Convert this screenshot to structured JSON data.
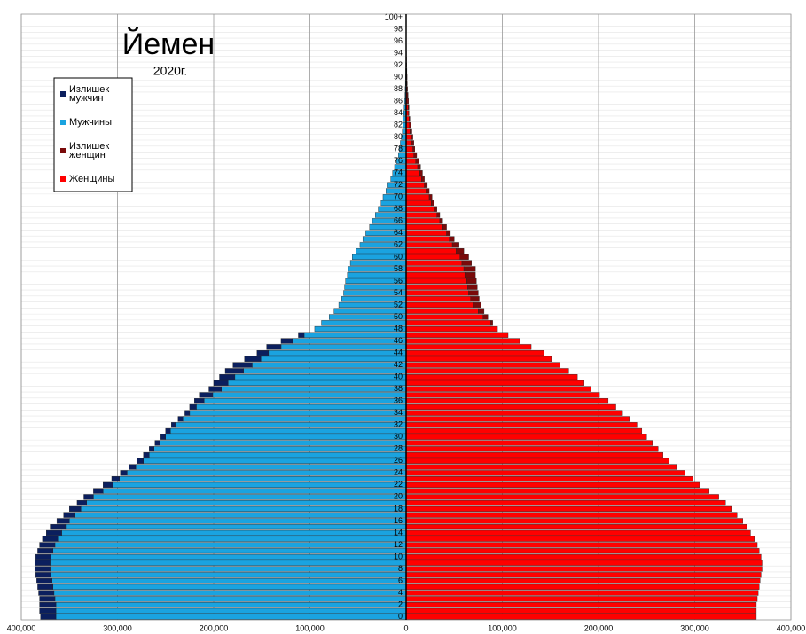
{
  "chart_data": {
    "type": "pyramid",
    "title": "Йемен",
    "subtitle": "2020г.",
    "categories": [
      "0",
      null,
      "2",
      null,
      "4",
      null,
      "6",
      null,
      "8",
      null,
      "10",
      null,
      "12",
      null,
      "14",
      null,
      "16",
      null,
      "18",
      null,
      "20",
      null,
      "22",
      null,
      "24",
      null,
      "26",
      null,
      "28",
      null,
      "30",
      null,
      "32",
      null,
      "34",
      null,
      "36",
      null,
      "38",
      null,
      "40",
      null,
      "42",
      null,
      "44",
      null,
      "46",
      null,
      "48",
      null,
      "50",
      null,
      "52",
      null,
      "54",
      null,
      "56",
      null,
      "58",
      null,
      "60",
      null,
      "62",
      null,
      "64",
      null,
      "66",
      null,
      "68",
      null,
      "70",
      null,
      "72",
      null,
      "74",
      null,
      "76",
      null,
      "78",
      null,
      "80",
      null,
      "82",
      null,
      "84",
      null,
      "86",
      null,
      "88",
      null,
      "90",
      null,
      "92",
      null,
      "94",
      null,
      "96",
      null,
      "98",
      null,
      "100+"
    ],
    "series": [
      {
        "name": "Излишек мужчин",
        "color": "#0b1f5e",
        "values": [
          16000,
          17000,
          17000,
          16000,
          16000,
          16000,
          16000,
          16000,
          16000,
          16000,
          16000,
          16000,
          16000,
          16000,
          16000,
          16000,
          13000,
          12000,
          12000,
          10000,
          10000,
          10000,
          10000,
          8000,
          7000,
          7000,
          7000,
          6000,
          5000,
          5000,
          5000,
          5000,
          4000,
          5000,
          5000,
          7000,
          10000,
          14000,
          13000,
          15000,
          16000,
          19000,
          20000,
          17000,
          12000,
          15000,
          12000,
          6000,
          0,
          0,
          0,
          0,
          0,
          0,
          0,
          0,
          0,
          0,
          0,
          0,
          0,
          0,
          0,
          0,
          0,
          0,
          0,
          0,
          0,
          0,
          0,
          0,
          0,
          0,
          0,
          0,
          0,
          0,
          0,
          0,
          0,
          0,
          0,
          0,
          0,
          0,
          0,
          0,
          0,
          0,
          0,
          0,
          0,
          0,
          0,
          0,
          0,
          0,
          0,
          0,
          0
        ]
      },
      {
        "name": "Мужчины",
        "color": "#1aa3e0",
        "values": [
          364000,
          364000,
          364000,
          365000,
          366000,
          367000,
          368000,
          369000,
          370000,
          370000,
          369000,
          367000,
          365000,
          362000,
          358000,
          354000,
          350000,
          344000,
          338000,
          332000,
          325000,
          315000,
          305000,
          298000,
          290000,
          281000,
          273000,
          267000,
          262000,
          256000,
          250000,
          245000,
          240000,
          232000,
          225000,
          218000,
          210000,
          201000,
          192000,
          185000,
          178000,
          169000,
          160000,
          151000,
          143000,
          130000,
          118000,
          106000,
          95000,
          88000,
          80000,
          75000,
          70000,
          67000,
          65000,
          64000,
          63000,
          61000,
          60000,
          58000,
          56000,
          52000,
          48000,
          45000,
          42000,
          38000,
          35000,
          32000,
          29000,
          26000,
          24000,
          21000,
          19000,
          16000,
          14000,
          12000,
          10000,
          8000,
          7000,
          6000,
          5000,
          4000,
          3500,
          3000,
          2500,
          2000,
          1500,
          1200,
          1000,
          800,
          600,
          500,
          400,
          300,
          200,
          150,
          100,
          80,
          50,
          50,
          100
        ]
      },
      {
        "name": "Излишек женщин",
        "color": "#7a0a0a",
        "values": [
          0,
          0,
          0,
          0,
          0,
          0,
          0,
          0,
          0,
          0,
          0,
          0,
          0,
          0,
          0,
          0,
          0,
          0,
          0,
          0,
          0,
          0,
          0,
          0,
          0,
          0,
          0,
          0,
          0,
          0,
          0,
          0,
          0,
          0,
          0,
          0,
          0,
          0,
          0,
          0,
          0,
          0,
          0,
          0,
          0,
          0,
          0,
          0,
          0,
          2000,
          5000,
          6000,
          8000,
          9000,
          10000,
          10000,
          10000,
          11000,
          12000,
          10000,
          9000,
          8000,
          7000,
          5000,
          4000,
          4000,
          3000,
          3000,
          3000,
          3000,
          3000,
          3000,
          3000,
          3000,
          3000,
          3000,
          3000,
          3000,
          2000,
          2000,
          2000,
          2000,
          1500,
          1000,
          500,
          1000,
          1000,
          800,
          500,
          400,
          400,
          300,
          200,
          200,
          200,
          150,
          100,
          70,
          50,
          50,
          100
        ]
      },
      {
        "name": "Женщины",
        "color": "#ff0000",
        "values": [
          364000,
          364000,
          364000,
          365000,
          366000,
          367000,
          368000,
          369000,
          370000,
          370000,
          369000,
          367000,
          365000,
          362000,
          358000,
          354000,
          350000,
          344000,
          338000,
          332000,
          325000,
          315000,
          305000,
          298000,
          290000,
          281000,
          273000,
          267000,
          262000,
          256000,
          250000,
          245000,
          240000,
          232000,
          225000,
          218000,
          210000,
          201000,
          192000,
          185000,
          178000,
          169000,
          160000,
          151000,
          143000,
          130000,
          118000,
          106000,
          95000,
          88000,
          80000,
          75000,
          70000,
          67000,
          65000,
          64000,
          63000,
          61000,
          60000,
          58000,
          56000,
          52000,
          48000,
          45000,
          42000,
          38000,
          35000,
          32000,
          29000,
          26000,
          24000,
          21000,
          19000,
          16000,
          14000,
          12000,
          10000,
          8000,
          7000,
          6000,
          5000,
          4000,
          3500,
          3000,
          2500,
          2000,
          1500,
          1200,
          1000,
          800,
          600,
          500,
          400,
          300,
          200,
          150,
          100,
          80,
          50,
          50,
          100
        ]
      }
    ],
    "xlim": [
      -400000,
      400000
    ],
    "xticks": [
      {
        "value": -400000,
        "label": "400,000"
      },
      {
        "value": -300000,
        "label": "300,000"
      },
      {
        "value": -200000,
        "label": "200,000"
      },
      {
        "value": -100000,
        "label": "100,000"
      },
      0,
      {
        "value": 100000,
        "label": "100,000"
      },
      {
        "value": 200000,
        "label": "200,000"
      },
      {
        "value": 300000,
        "label": "300,000"
      },
      {
        "value": 400000,
        "label": "400,000"
      }
    ],
    "grid": true
  }
}
